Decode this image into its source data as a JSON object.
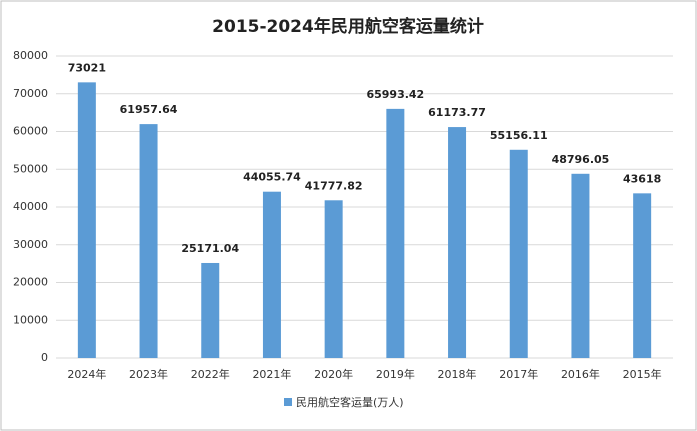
{
  "chart_data": {
    "type": "bar",
    "title": "2015-2024年民用航空客运量统计",
    "categories": [
      "2024年",
      "2023年",
      "2022年",
      "2021年",
      "2020年",
      "2019年",
      "2018年",
      "2017年",
      "2016年",
      "2015年"
    ],
    "series": [
      {
        "name": "民用航空客运量(万人)",
        "color": "#5b9bd5",
        "values": [
          73021,
          61957.64,
          25171.04,
          44055.74,
          41777.82,
          65993.42,
          61173.77,
          55156.11,
          48796.05,
          43618
        ]
      }
    ],
    "ylim": [
      0,
      80000
    ],
    "yticks": [
      0,
      10000,
      20000,
      30000,
      40000,
      50000,
      60000,
      70000,
      80000
    ],
    "grid": true,
    "legend": "bottom"
  }
}
